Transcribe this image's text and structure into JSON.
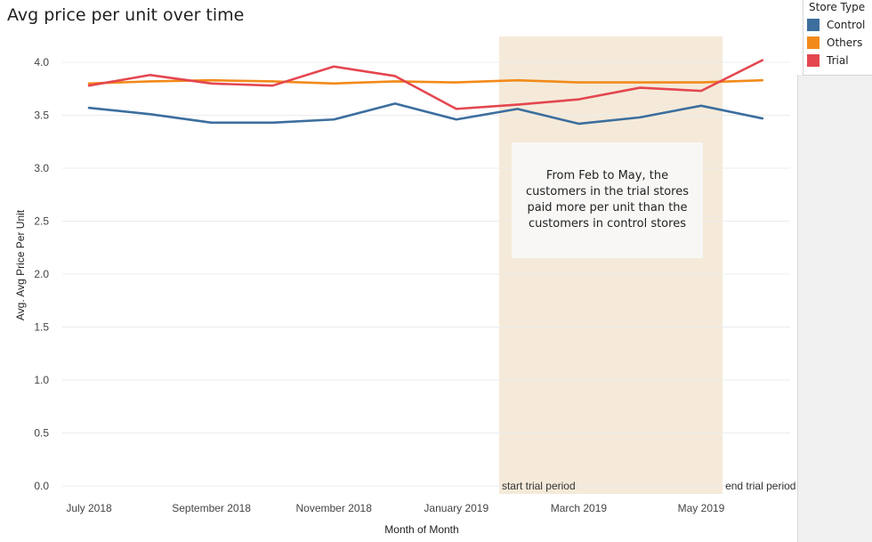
{
  "chart_data": {
    "type": "line",
    "title": "Avg price per unit over time",
    "xlabel": "Month of Month",
    "ylabel": "Avg. Avg Price Per Unit",
    "ylim": [
      0,
      4.2
    ],
    "yticks": [
      "0.0",
      "0.5",
      "1.0",
      "1.5",
      "2.0",
      "2.5",
      "3.0",
      "3.5",
      "4.0"
    ],
    "x": [
      "2018-07",
      "2018-08",
      "2018-09",
      "2018-10",
      "2018-11",
      "2018-12",
      "2019-01",
      "2019-02",
      "2019-03",
      "2019-04",
      "2019-05",
      "2019-06"
    ],
    "xtick_labels": [
      {
        "month": "2018-07",
        "label": "July 2018"
      },
      {
        "month": "2018-09",
        "label": "September 2018"
      },
      {
        "month": "2018-11",
        "label": "November 2018"
      },
      {
        "month": "2019-01",
        "label": "January 2019"
      },
      {
        "month": "2019-03",
        "label": "March 2019"
      },
      {
        "month": "2019-05",
        "label": "May 2019"
      }
    ],
    "series": [
      {
        "name": "Control",
        "color": "#3c6e9e",
        "values": [
          3.57,
          3.51,
          3.43,
          3.43,
          3.46,
          3.61,
          3.46,
          3.56,
          3.42,
          3.48,
          3.59,
          3.47
        ]
      },
      {
        "name": "Others",
        "color": "#f28a1a",
        "values": [
          3.8,
          3.82,
          3.83,
          3.82,
          3.8,
          3.82,
          3.81,
          3.83,
          3.81,
          3.81,
          3.81,
          3.83
        ]
      },
      {
        "name": "Trial",
        "color": "#e4464f",
        "values": [
          3.78,
          3.88,
          3.8,
          3.78,
          3.96,
          3.87,
          3.56,
          3.6,
          3.65,
          3.76,
          3.73,
          4.02
        ]
      }
    ],
    "highlight": {
      "from": "2019-02",
      "to": "2019-05",
      "color": "#f5ead9"
    },
    "annotations": {
      "start": "start trial period",
      "end": "end trial period",
      "note": "From Feb to May, the customers in the trial stores paid more per unit than the customers in control stores"
    },
    "legend": {
      "title": "Store Type",
      "position": "top-right"
    },
    "grid": true
  }
}
